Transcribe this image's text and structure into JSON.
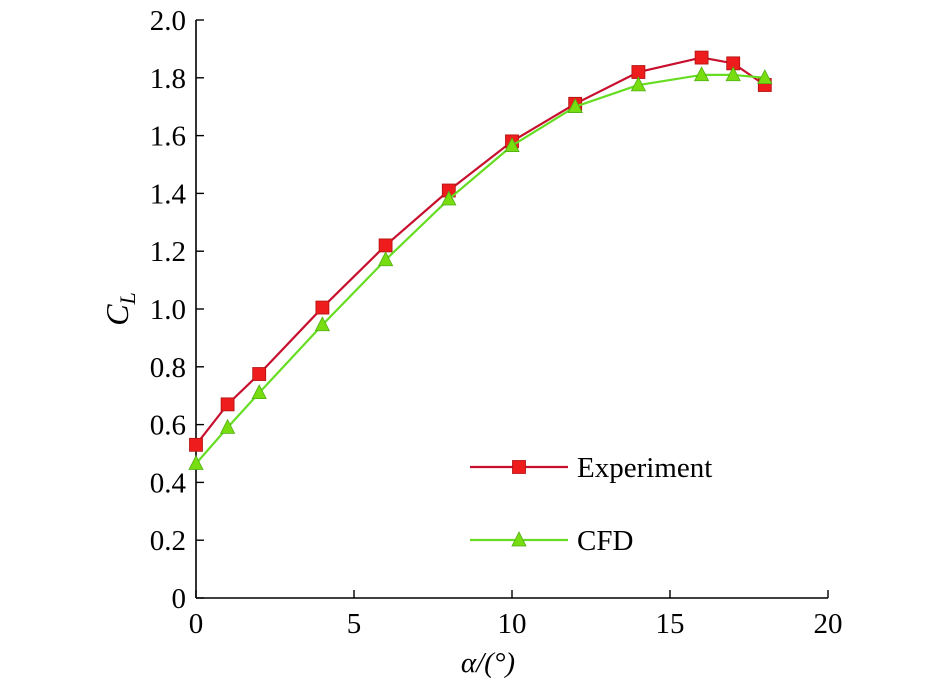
{
  "chart_data": {
    "type": "line",
    "title": "",
    "xlabel": "α/(°)",
    "ylabel": "C_L",
    "ylabel_main": "C",
    "ylabel_sub": "L",
    "xlim": [
      0,
      20
    ],
    "ylim": [
      0,
      2.0
    ],
    "x_ticks": [
      0,
      5,
      10,
      15,
      20
    ],
    "x_tick_labels": [
      "0",
      "5",
      "10",
      "15",
      "20"
    ],
    "y_ticks": [
      0,
      0.2,
      0.4,
      0.6,
      0.8,
      1.0,
      1.2,
      1.4,
      1.6,
      1.8,
      2.0
    ],
    "y_tick_labels": [
      "0",
      "0.2",
      "0.4",
      "0.6",
      "0.8",
      "1.0",
      "1.2",
      "1.4",
      "1.6",
      "1.8",
      "2.0"
    ],
    "grid": false,
    "legend_position": "bottom-right",
    "series": [
      {
        "name": "Experiment",
        "color": "#c8102e",
        "marker_color": "#ee1c1c",
        "marker": "square",
        "x": [
          0,
          1,
          2,
          4,
          6,
          8,
          10,
          12,
          14,
          16,
          17,
          18
        ],
        "values": [
          0.53,
          0.67,
          0.775,
          1.005,
          1.22,
          1.41,
          1.58,
          1.71,
          1.82,
          1.87,
          1.85,
          1.775
        ]
      },
      {
        "name": "CFD",
        "color": "#66dd22",
        "marker_color": "#77dd11",
        "marker": "triangle",
        "x": [
          0,
          1,
          2,
          4,
          6,
          8,
          10,
          12,
          14,
          16,
          17,
          18
        ],
        "values": [
          0.465,
          0.59,
          0.71,
          0.945,
          1.17,
          1.38,
          1.565,
          1.7,
          1.775,
          1.81,
          1.81,
          1.8
        ]
      }
    ]
  }
}
